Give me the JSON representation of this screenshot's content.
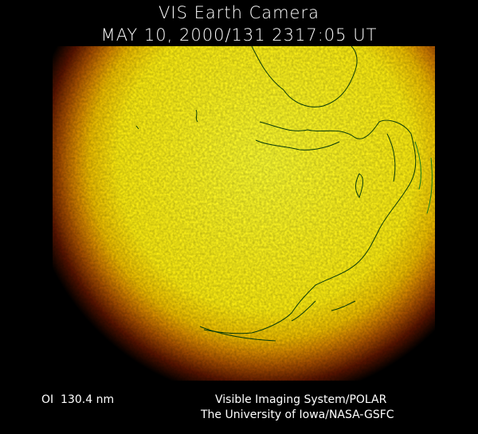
{
  "header": {
    "title": "VIS Earth Camera",
    "timestamp": "MAY 10, 2000/131 2317:05 UT"
  },
  "image": {
    "subject": "earth-disk-far-ultraviolet",
    "colors": {
      "core": "#ffff20",
      "mid": "#f0c000",
      "limb": "#c06000",
      "edge": "#5a1000",
      "coastline": "#0a3a0a"
    }
  },
  "footer": {
    "filter": "OI  130.4 nm",
    "credit_line1": "Visible Imaging System/POLAR",
    "credit_line2": "The University of Iowa/NASA-GSFC"
  }
}
